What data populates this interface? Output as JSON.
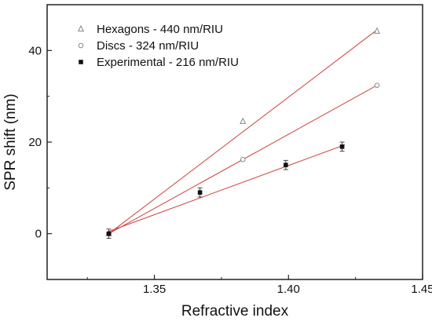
{
  "chart_data": {
    "type": "scatter",
    "title": "",
    "xlabel": "Refractive index",
    "ylabel": "SPR shift (nm)",
    "xlim": [
      1.31,
      1.45
    ],
    "ylim": [
      -10,
      50
    ],
    "x_ticks": [
      1.35,
      1.4,
      1.45
    ],
    "x_tick_labels": [
      "1.35",
      "1.40",
      "1.45"
    ],
    "y_ticks": [
      0,
      20,
      40
    ],
    "y_tick_labels": [
      "0",
      "20",
      "40"
    ],
    "grid": false,
    "legend_position": "top-left",
    "fit_line_color": "#d04040",
    "series": [
      {
        "name": "Hexagons - 440 nm/RIU",
        "marker": "triangle-open",
        "color": "#888888",
        "x": [
          1.333,
          1.383,
          1.433
        ],
        "y": [
          0,
          24.5,
          44.2
        ],
        "error": [
          0,
          0,
          0
        ],
        "fit": {
          "x": [
            1.333,
            1.433
          ],
          "y": [
            0,
            44.5
          ]
        }
      },
      {
        "name": "Discs - 324 nm/RIU",
        "marker": "circle-open",
        "color": "#888888",
        "x": [
          1.333,
          1.383,
          1.433
        ],
        "y": [
          0,
          16.2,
          32.4
        ],
        "error": [
          0,
          0,
          0
        ],
        "fit": {
          "x": [
            1.333,
            1.433
          ],
          "y": [
            0,
            32.4
          ]
        }
      },
      {
        "name": "Experimental - 216 nm/RIU",
        "marker": "square-filled",
        "color": "#111111",
        "x": [
          1.333,
          1.367,
          1.399,
          1.42
        ],
        "y": [
          0,
          9.0,
          15.0,
          19.0
        ],
        "error": [
          1.0,
          1.0,
          1.0,
          1.0
        ],
        "fit": {
          "x": [
            1.333,
            1.421
          ],
          "y": [
            0.5,
            19.4
          ]
        }
      }
    ]
  }
}
